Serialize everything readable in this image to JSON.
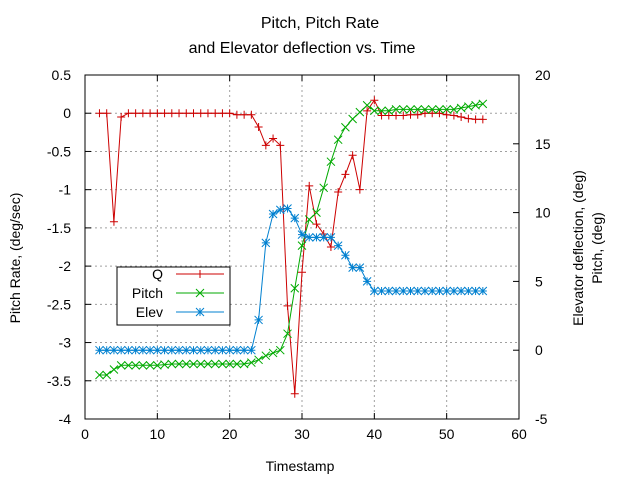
{
  "chart_data": {
    "type": "line",
    "title_line1": "Pitch, Pitch Rate",
    "title_line2": "and Elevator deflection vs. Time",
    "xlabel": "Timestamp",
    "ylabel_left": "Pitch Rate, (deg/sec)",
    "ylabel_right_1": "Elevator deflection, (deg)",
    "ylabel_right_2": "Pitch, (deg)",
    "xlim": [
      0,
      60
    ],
    "ylim_left": [
      -4,
      0.5
    ],
    "ylim_right": [
      -5,
      20
    ],
    "x_ticks": [
      "0",
      "10",
      "20",
      "30",
      "40",
      "50",
      "60"
    ],
    "y_left_ticks": [
      "0.5",
      "0",
      "-0.5",
      "-1",
      "-1.5",
      "-2",
      "-2.5",
      "-3",
      "-3.5",
      "-4"
    ],
    "y_right_ticks": [
      "20",
      "15",
      "10",
      "5",
      "0",
      "-5"
    ],
    "grid": true,
    "legend_position": "left-middle",
    "series": [
      {
        "name": "Q",
        "axis": "left",
        "marker": "plus",
        "color": "#cc0000",
        "x": [
          2,
          3,
          4,
          5,
          6,
          7,
          8,
          9,
          10,
          11,
          12,
          13,
          14,
          15,
          16,
          17,
          18,
          19,
          20,
          21,
          22,
          23,
          24,
          25,
          26,
          27,
          28,
          29,
          30,
          31,
          32,
          33,
          34,
          35,
          36,
          37,
          38,
          39,
          40,
          41,
          42,
          43,
          44,
          45,
          46,
          47,
          48,
          49,
          50,
          51,
          52,
          53,
          54,
          55
        ],
        "values": [
          0,
          0,
          -1.42,
          -0.05,
          0,
          0,
          0,
          0,
          0,
          0,
          0,
          0,
          0,
          0,
          0,
          0,
          0,
          0,
          0,
          -0.02,
          -0.02,
          -0.02,
          -0.18,
          -0.42,
          -0.33,
          -0.42,
          -2.52,
          -3.67,
          -2.08,
          -0.95,
          -1.45,
          -1.58,
          -1.75,
          -1.03,
          -0.8,
          -0.55,
          -1.0,
          0.03,
          0.17,
          -0.03,
          -0.03,
          -0.03,
          -0.03,
          -0.02,
          -0.02,
          0,
          0,
          0,
          -0.02,
          -0.03,
          -0.05,
          -0.07,
          -0.08,
          -0.08
        ]
      },
      {
        "name": "Pitch",
        "axis": "right",
        "marker": "x",
        "color": "#00aa00",
        "x": [
          2,
          3,
          4,
          5,
          6,
          7,
          8,
          9,
          10,
          11,
          12,
          13,
          14,
          15,
          16,
          17,
          18,
          19,
          20,
          21,
          22,
          23,
          24,
          25,
          26,
          27,
          28,
          29,
          30,
          31,
          32,
          33,
          34,
          35,
          36,
          37,
          38,
          39,
          40,
          41,
          42,
          43,
          44,
          45,
          46,
          47,
          48,
          49,
          50,
          51,
          52,
          53,
          54,
          55
        ],
        "values": [
          -1.8,
          -1.8,
          -1.4,
          -1.1,
          -1.1,
          -1.1,
          -1.1,
          -1.1,
          -1.1,
          -1.05,
          -1.0,
          -1.0,
          -1.0,
          -1.0,
          -1.0,
          -1.0,
          -1.0,
          -1.0,
          -1.0,
          -1.0,
          -1.0,
          -0.9,
          -0.7,
          -0.4,
          -0.2,
          0,
          1.2,
          4.5,
          7.6,
          9.5,
          10.0,
          11.8,
          13.7,
          15.3,
          16.2,
          16.8,
          17.3,
          17.8,
          17.4,
          17.4,
          17.4,
          17.5,
          17.5,
          17.5,
          17.5,
          17.5,
          17.5,
          17.5,
          17.5,
          17.5,
          17.6,
          17.7,
          17.8,
          17.9
        ]
      },
      {
        "name": "Elev",
        "axis": "right",
        "marker": "star",
        "color": "#0080d0",
        "x": [
          2,
          3,
          4,
          5,
          6,
          7,
          8,
          9,
          10,
          11,
          12,
          13,
          14,
          15,
          16,
          17,
          18,
          19,
          20,
          21,
          22,
          23,
          24,
          25,
          26,
          27,
          28,
          29,
          30,
          31,
          32,
          33,
          34,
          35,
          36,
          37,
          38,
          39,
          40,
          41,
          42,
          43,
          44,
          45,
          46,
          47,
          48,
          49,
          50,
          51,
          52,
          53,
          54,
          55
        ],
        "values": [
          0,
          0,
          0,
          0,
          0,
          0,
          0,
          0,
          0,
          0,
          0,
          0,
          0,
          0,
          0,
          0,
          0,
          0,
          0,
          0,
          0,
          0,
          2.2,
          7.8,
          9.9,
          10.2,
          10.3,
          9.6,
          8.4,
          8.2,
          8.2,
          8.2,
          8.2,
          7.6,
          6.9,
          6.0,
          6.0,
          5.0,
          4.3,
          4.3,
          4.3,
          4.3,
          4.3,
          4.3,
          4.3,
          4.3,
          4.3,
          4.3,
          4.3,
          4.3,
          4.3,
          4.3,
          4.3,
          4.3
        ]
      }
    ]
  }
}
